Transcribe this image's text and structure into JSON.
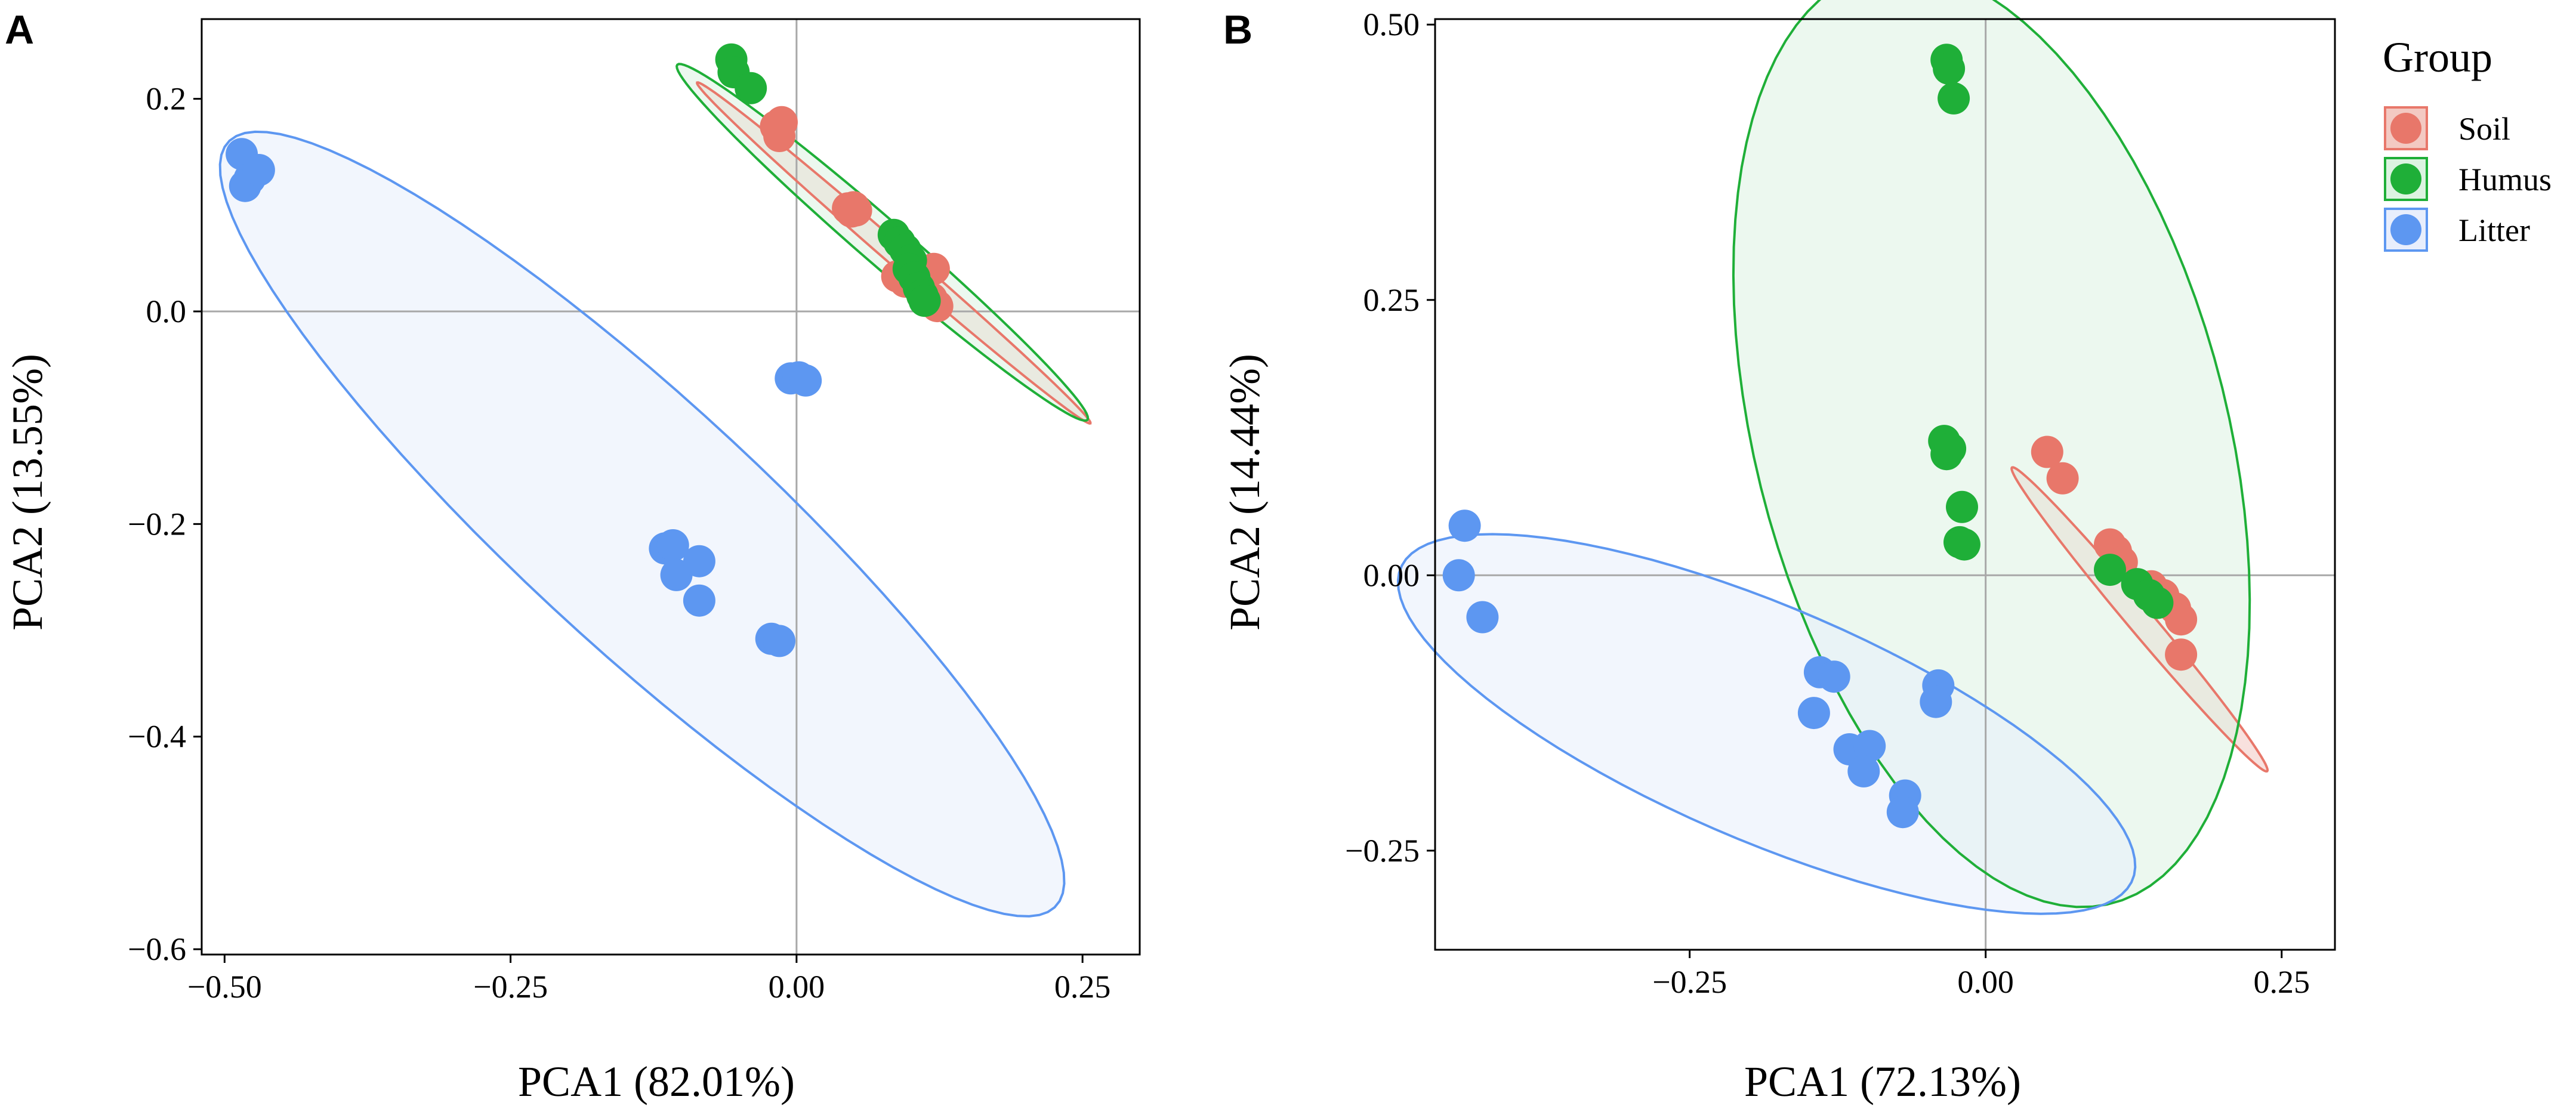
{
  "chart_data": [
    {
      "type": "scatter",
      "panel_label": "A",
      "xlabel": "PCA1 (82.01%)",
      "ylabel": "PCA2 (13.55%)",
      "xlim": [
        -0.52,
        0.3
      ],
      "ylim": [
        -0.605,
        0.275
      ],
      "xticks": [
        -0.5,
        -0.25,
        0.0,
        0.25
      ],
      "xtick_labels": [
        "−0.50",
        "−0.25",
        "0.00",
        "0.25"
      ],
      "yticks": [
        0.2,
        0.0,
        -0.2,
        -0.4,
        -0.6
      ],
      "ytick_labels": [
        "0.2",
        "0.0",
        "−0.2",
        "−0.4",
        "−0.6"
      ],
      "reference_lines": {
        "x": 0,
        "y": 0
      },
      "series": [
        {
          "name": "Soil",
          "points": [
            [
              -0.018,
              0.174
            ],
            [
              -0.015,
              0.165
            ],
            [
              -0.013,
              0.178
            ],
            [
              0.045,
              0.097
            ],
            [
              0.048,
              0.094
            ],
            [
              0.05,
              0.098
            ],
            [
              0.052,
              0.095
            ],
            [
              0.088,
              0.033
            ],
            [
              0.095,
              0.028
            ],
            [
              0.11,
              0.015
            ],
            [
              0.118,
              0.012
            ],
            [
              0.12,
              0.04
            ],
            [
              0.123,
              0.005
            ]
          ],
          "ellipse": {
            "center": [
              0.085,
              0.055
            ],
            "semi_major": 0.235,
            "semi_minor": 0.0095,
            "angle_deg": -43.0
          }
        },
        {
          "name": "Humus",
          "points": [
            [
              -0.057,
              0.237
            ],
            [
              -0.055,
              0.225
            ],
            [
              -0.04,
              0.21
            ],
            [
              0.085,
              0.072
            ],
            [
              0.09,
              0.065
            ],
            [
              0.095,
              0.058
            ],
            [
              0.1,
              0.048
            ],
            [
              0.098,
              0.04
            ],
            [
              0.103,
              0.032
            ],
            [
              0.107,
              0.022
            ],
            [
              0.11,
              0.015
            ],
            [
              0.112,
              0.01
            ]
          ],
          "ellipse": {
            "center": [
              0.075,
              0.065
            ],
            "semi_major": 0.245,
            "semi_minor": 0.0205,
            "angle_deg": -43.0
          }
        },
        {
          "name": "Litter",
          "points": [
            [
              -0.485,
              0.148
            ],
            [
              -0.482,
              0.118
            ],
            [
              -0.478,
              0.125
            ],
            [
              -0.47,
              0.133
            ],
            [
              -0.005,
              -0.063
            ],
            [
              0.002,
              -0.062
            ],
            [
              0.008,
              -0.065
            ],
            [
              -0.115,
              -0.223
            ],
            [
              -0.108,
              -0.22
            ],
            [
              -0.105,
              -0.248
            ],
            [
              -0.085,
              -0.235
            ],
            [
              -0.085,
              -0.272
            ],
            [
              -0.022,
              -0.308
            ],
            [
              -0.015,
              -0.31
            ]
          ],
          "ellipse": {
            "center": [
              -0.135,
              -0.2
            ],
            "semi_major": 0.51,
            "semi_minor": 0.111,
            "angle_deg": -45.0
          }
        }
      ]
    },
    {
      "type": "scatter",
      "panel_label": "B",
      "xlabel": "PCA1 (72.13%)",
      "ylabel": "PCA2 (14.44%)",
      "xlim": [
        -0.465,
        0.295
      ],
      "ylim": [
        -0.34,
        0.505
      ],
      "xticks": [
        -0.25,
        0.0,
        0.25
      ],
      "xtick_labels": [
        "−0.25",
        "0.00",
        "0.25"
      ],
      "yticks": [
        0.5,
        0.25,
        0.0,
        -0.25
      ],
      "ytick_labels": [
        "0.50",
        "0.25",
        "0.00",
        "−0.25"
      ],
      "reference_lines": {
        "x": 0,
        "y": 0
      },
      "series": [
        {
          "name": "Soil",
          "points": [
            [
              0.052,
              0.112
            ],
            [
              0.065,
              0.088
            ],
            [
              0.105,
              0.028
            ],
            [
              0.11,
              0.022
            ],
            [
              0.115,
              0.012
            ],
            [
              0.14,
              -0.01
            ],
            [
              0.15,
              -0.018
            ],
            [
              0.16,
              -0.03
            ],
            [
              0.165,
              -0.04
            ],
            [
              0.165,
              -0.072
            ]
          ],
          "ellipse": {
            "center": [
              0.13,
              -0.04
            ],
            "semi_major": 0.175,
            "semi_minor": 0.011,
            "angle_deg": -52.0
          }
        },
        {
          "name": "Humus",
          "points": [
            [
              -0.033,
              0.468
            ],
            [
              -0.031,
              0.46
            ],
            [
              -0.027,
              0.433
            ],
            [
              -0.035,
              0.122
            ],
            [
              -0.033,
              0.11
            ],
            [
              -0.03,
              0.115
            ],
            [
              -0.02,
              0.062
            ],
            [
              -0.022,
              0.03
            ],
            [
              -0.018,
              0.028
            ],
            [
              0.105,
              0.005
            ],
            [
              0.128,
              -0.008
            ],
            [
              0.138,
              -0.018
            ],
            [
              0.145,
              -0.025
            ]
          ],
          "ellipse": {
            "center": [
              0.005,
              0.125
            ],
            "semi_major": 0.435,
            "semi_minor": 0.2,
            "angle_deg": -77.0
          }
        },
        {
          "name": "Litter",
          "points": [
            [
              -0.44,
              0.045
            ],
            [
              -0.445,
              0.0
            ],
            [
              -0.425,
              -0.038
            ],
            [
              -0.14,
              -0.088
            ],
            [
              -0.128,
              -0.092
            ],
            [
              -0.145,
              -0.125
            ],
            [
              -0.115,
              -0.158
            ],
            [
              -0.098,
              -0.155
            ],
            [
              -0.103,
              -0.178
            ],
            [
              -0.068,
              -0.2
            ],
            [
              -0.07,
              -0.215
            ],
            [
              -0.04,
              -0.1
            ],
            [
              -0.042,
              -0.115
            ]
          ],
          "ellipse": {
            "center": [
              -0.185,
              -0.135
            ],
            "semi_major": 0.34,
            "semi_minor": 0.105,
            "angle_deg": -25.0
          }
        }
      ]
    }
  ],
  "legend": {
    "title": "Group",
    "entries": [
      "Soil",
      "Humus",
      "Litter"
    ]
  },
  "colors": {
    "Soil": "#E8776A",
    "Humus": "#1FAF38",
    "Litter": "#5D97F1",
    "Soil_fill": "#F3C9C2",
    "Humus_fill": "#DCF3E1",
    "Litter_fill": "#E8EEFC",
    "reference_line": "#A8A8A8",
    "frame": "#000000"
  }
}
